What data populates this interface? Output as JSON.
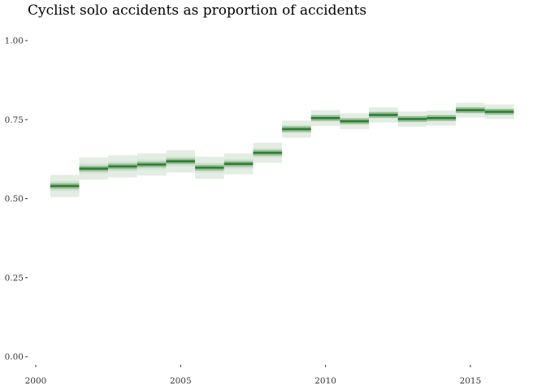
{
  "chart_data": {
    "type": "interval",
    "title": "Cyclist solo accidents as proportion of accidents",
    "xlabel": "",
    "ylabel": "",
    "x": [
      2001,
      2002,
      2003,
      2004,
      2005,
      2006,
      2007,
      2008,
      2009,
      2010,
      2011,
      2012,
      2013,
      2014,
      2015,
      2016
    ],
    "estimate": [
      0.54,
      0.595,
      0.602,
      0.608,
      0.618,
      0.598,
      0.61,
      0.645,
      0.72,
      0.755,
      0.745,
      0.765,
      0.752,
      0.755,
      0.78,
      0.775
    ],
    "lower": [
      0.505,
      0.56,
      0.567,
      0.573,
      0.583,
      0.563,
      0.577,
      0.613,
      0.693,
      0.73,
      0.72,
      0.741,
      0.728,
      0.731,
      0.757,
      0.752
    ],
    "upper": [
      0.575,
      0.63,
      0.637,
      0.643,
      0.653,
      0.633,
      0.643,
      0.677,
      0.747,
      0.78,
      0.77,
      0.789,
      0.776,
      0.779,
      0.803,
      0.798
    ],
    "xlim": [
      2000,
      2016.6
    ],
    "ylim": [
      0,
      1
    ],
    "x_ticks": [
      "2000",
      "2005",
      "2010",
      "2015"
    ],
    "y_ticks": [
      "0.00",
      "0.25",
      "0.50",
      "0.75",
      "1.00"
    ],
    "grid": false,
    "colors": {
      "estimate": "#2e7d32",
      "band": "#e3ede3",
      "band_mid": "#cfe0cf"
    }
  }
}
